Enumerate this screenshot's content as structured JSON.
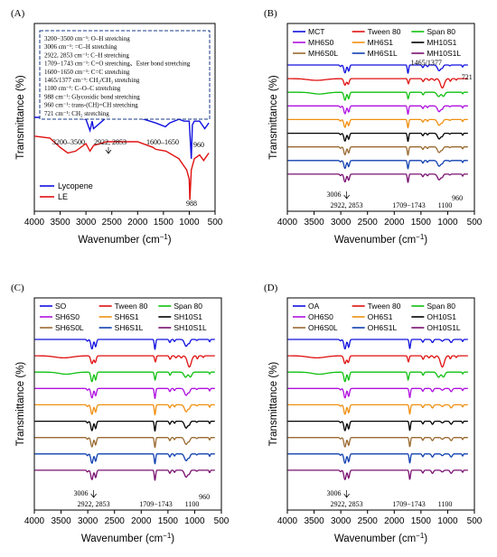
{
  "figure": {
    "xlabel_main": "Wavenumber (cm",
    "xlabel_sup": "−1",
    "xlabel_tail": ")",
    "ylabel": "Transmittance (%)",
    "x_ticks": [
      "4000",
      "3500",
      "3000",
      "2500",
      "2000",
      "1500",
      "1000",
      "500"
    ]
  },
  "chart_data": [
    {
      "panel": "(A)",
      "type": "line",
      "xlim": [
        4000,
        500
      ],
      "x_direction": "reversed",
      "y_ticks": "none",
      "legend_placement": "bottom-left",
      "series": [
        {
          "name": "Lycopene",
          "color": "#1010e0",
          "x": [
            4000,
            3600,
            3300,
            3000,
            2922,
            2880,
            2853,
            2600,
            2000,
            1650,
            1460,
            1380,
            1200,
            1100,
            1000,
            960,
            940,
            900,
            800,
            700,
            620
          ],
          "y": [
            0.5,
            0.5,
            0.5,
            0.49,
            0.43,
            0.48,
            0.44,
            0.5,
            0.5,
            0.47,
            0.45,
            0.47,
            0.49,
            0.48,
            0.48,
            0.28,
            0.46,
            0.48,
            0.48,
            0.44,
            0.47
          ]
        },
        {
          "name": "LE",
          "color": "#e01010",
          "x": [
            4000,
            3700,
            3500,
            3350,
            3200,
            3000,
            2922,
            2853,
            2600,
            2200,
            2000,
            1700,
            1650,
            1450,
            1200,
            1100,
            1050,
            1000,
            988,
            960,
            900,
            800,
            720,
            620
          ],
          "y": [
            0.4,
            0.39,
            0.34,
            0.31,
            0.32,
            0.36,
            0.32,
            0.35,
            0.37,
            0.37,
            0.37,
            0.34,
            0.33,
            0.32,
            0.28,
            0.24,
            0.22,
            0.17,
            0.06,
            0.22,
            0.28,
            0.3,
            0.27,
            0.31
          ]
        }
      ],
      "annotations": [
        "3200–3500",
        "2922, 2853",
        "1600–1650",
        "960",
        "988"
      ],
      "info_box": [
        "3200−3500 cm⁻¹: O–H stretching",
        "3006 cm⁻¹: =C–H stretching",
        "2922, 2853 cm⁻¹: C–H stretching",
        "1709−1743 cm⁻¹: C=O stretching、Ester bond stretching",
        "1600−1650 cm⁻¹: C=C stretching",
        "1465/1377 cm⁻¹: CH₂/CH₃ stretching",
        "1100 cm⁻¹: C–O–C stretching",
        "988 cm⁻¹: Glycosidic bond stretching",
        "960 cm⁻¹: trans-(CH)=CH stretching",
        "721 cm⁻¹: CH₂ stretching"
      ]
    },
    {
      "panel": "(B)",
      "type": "line",
      "xlim": [
        4000,
        500
      ],
      "x_direction": "reversed",
      "y_ticks": "none",
      "legend_placement": "top",
      "series": [
        {
          "name": "MCT",
          "color": "#1010e0",
          "profile": "oil"
        },
        {
          "name": "Tween 80",
          "color": "#e01010",
          "profile": "tween"
        },
        {
          "name": "Span 80",
          "color": "#10c010",
          "profile": "span"
        },
        {
          "name": "MH6S0",
          "color": "#b010e0",
          "profile": "oil"
        },
        {
          "name": "MH6S1",
          "color": "#f09010",
          "profile": "oil"
        },
        {
          "name": "MH10S1",
          "color": "#000000",
          "profile": "oil"
        },
        {
          "name": "MH6S0L",
          "color": "#9a6a30",
          "profile": "oil"
        },
        {
          "name": "MH6S1L",
          "color": "#1040b0",
          "profile": "oil"
        },
        {
          "name": "MH10S1L",
          "color": "#7a1070",
          "profile": "oil"
        }
      ],
      "annotations": [
        "1465/1377",
        "721",
        "3006",
        "2922, 2853",
        "1709−1743",
        "960",
        "1100"
      ]
    },
    {
      "panel": "(C)",
      "type": "line",
      "xlim": [
        4000,
        500
      ],
      "x_direction": "reversed",
      "y_ticks": "none",
      "legend_placement": "top",
      "series": [
        {
          "name": "SO",
          "color": "#1010e0",
          "profile": "oil"
        },
        {
          "name": "Tween 80",
          "color": "#e01010",
          "profile": "tween"
        },
        {
          "name": "Span 80",
          "color": "#10c010",
          "profile": "span"
        },
        {
          "name": "SH6S0",
          "color": "#b010e0",
          "profile": "oil"
        },
        {
          "name": "SH6S1",
          "color": "#f09010",
          "profile": "oil"
        },
        {
          "name": "SH10S1",
          "color": "#000000",
          "profile": "oil"
        },
        {
          "name": "SH6S0L",
          "color": "#9a6a30",
          "profile": "oil"
        },
        {
          "name": "SH6S1L",
          "color": "#1040b0",
          "profile": "oil"
        },
        {
          "name": "SH10S1L",
          "color": "#7a1070",
          "profile": "oil"
        }
      ],
      "annotations": [
        "3006",
        "2922, 2853",
        "1709−1743",
        "1100",
        "960"
      ]
    },
    {
      "panel": "(D)",
      "type": "line",
      "xlim": [
        4000,
        500
      ],
      "x_direction": "reversed",
      "y_ticks": "none",
      "legend_placement": "top",
      "series": [
        {
          "name": "OA",
          "color": "#1010e0",
          "profile": "acid"
        },
        {
          "name": "Tween 80",
          "color": "#e01010",
          "profile": "tween"
        },
        {
          "name": "Span 80",
          "color": "#10c010",
          "profile": "span"
        },
        {
          "name": "OH6S0",
          "color": "#b010e0",
          "profile": "acid"
        },
        {
          "name": "OH6S1",
          "color": "#f09010",
          "profile": "acid"
        },
        {
          "name": "OH10S1",
          "color": "#000000",
          "profile": "acid"
        },
        {
          "name": "OH6S0L",
          "color": "#9a6a30",
          "profile": "acid"
        },
        {
          "name": "OH6S1L",
          "color": "#1040b0",
          "profile": "acid"
        },
        {
          "name": "OH10S1L",
          "color": "#7a1070",
          "profile": "acid"
        }
      ],
      "annotations": [
        "3006",
        "2922, 2853",
        "1709−1743",
        "1100"
      ]
    }
  ]
}
